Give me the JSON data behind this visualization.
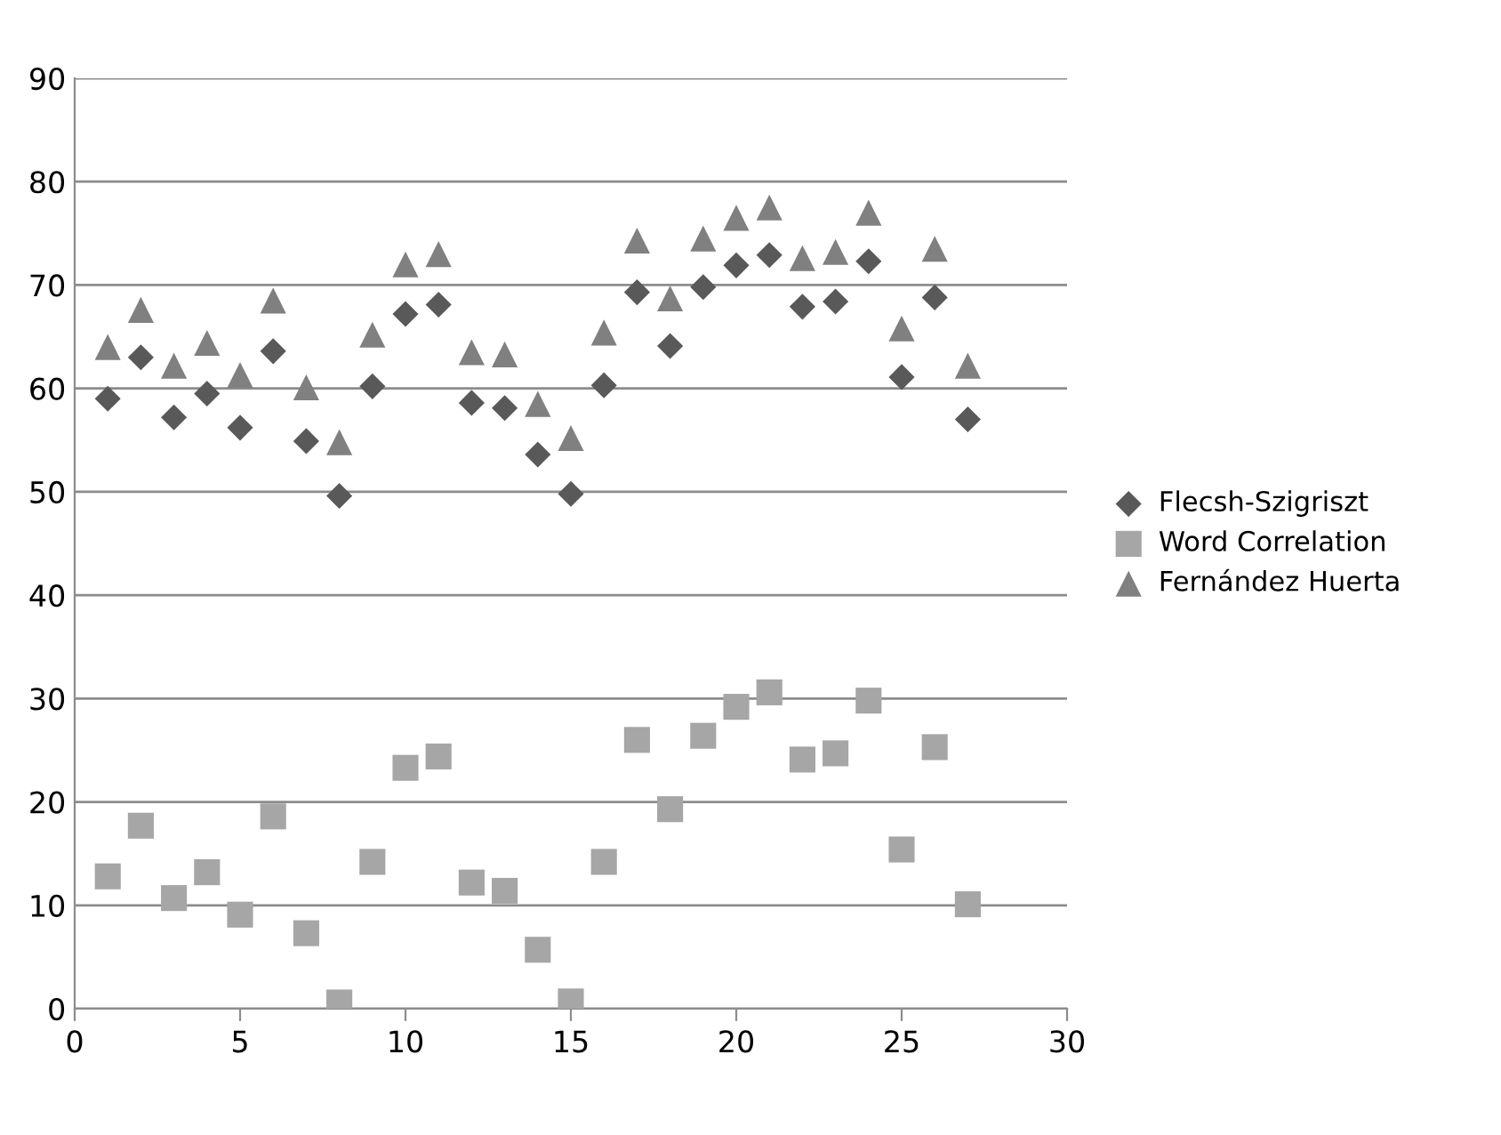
{
  "chart_data": {
    "type": "scatter",
    "x": [
      1,
      2,
      3,
      4,
      5,
      6,
      7,
      8,
      9,
      10,
      11,
      12,
      13,
      14,
      15,
      16,
      17,
      18,
      19,
      20,
      21,
      22,
      23,
      24,
      25,
      26,
      27
    ],
    "series": [
      {
        "name": "Flecsh-Szigriszt",
        "color": "#595959",
        "marker": "diamond",
        "values": [
          59,
          63,
          57.2,
          59.5,
          56.2,
          63.6,
          54.9,
          49.6,
          60.2,
          67.2,
          68.1,
          58.6,
          58.1,
          53.6,
          49.8,
          60.3,
          69.3,
          64.1,
          69.8,
          71.9,
          72.9,
          67.9,
          68.4,
          72.3,
          61.1,
          68.8,
          57.0
        ]
      },
      {
        "name": "Word Correlation",
        "color": "#a6a6a6",
        "marker": "square",
        "values": [
          12.8,
          17.7,
          10.7,
          13.2,
          9.1,
          18.6,
          7.3,
          0.6,
          14.2,
          23.3,
          24.4,
          12.2,
          11.4,
          5.7,
          0.7,
          14.2,
          26.0,
          19.3,
          26.4,
          29.2,
          30.6,
          24.1,
          24.7,
          29.8,
          15.4,
          25.3,
          10.1
        ]
      },
      {
        "name": "Fernández Huerta",
        "color": "#808080",
        "marker": "triangle",
        "values": [
          64,
          67.6,
          62.2,
          64.4,
          61.3,
          68.5,
          60.1,
          54.8,
          65.2,
          72,
          73,
          63.5,
          63.3,
          58.5,
          55.2,
          65.4,
          74.3,
          68.7,
          74.5,
          76.5,
          77.5,
          72.6,
          73.2,
          77,
          65.8,
          73.5,
          62.2
        ]
      }
    ],
    "xlim": [
      0,
      30
    ],
    "xticks": [
      0,
      5,
      10,
      15,
      20,
      25,
      30
    ],
    "ylim": [
      0,
      90
    ],
    "yticks": [
      0,
      10,
      20,
      30,
      40,
      50,
      60,
      70,
      80,
      90
    ],
    "grid": "y",
    "legend": "right"
  }
}
